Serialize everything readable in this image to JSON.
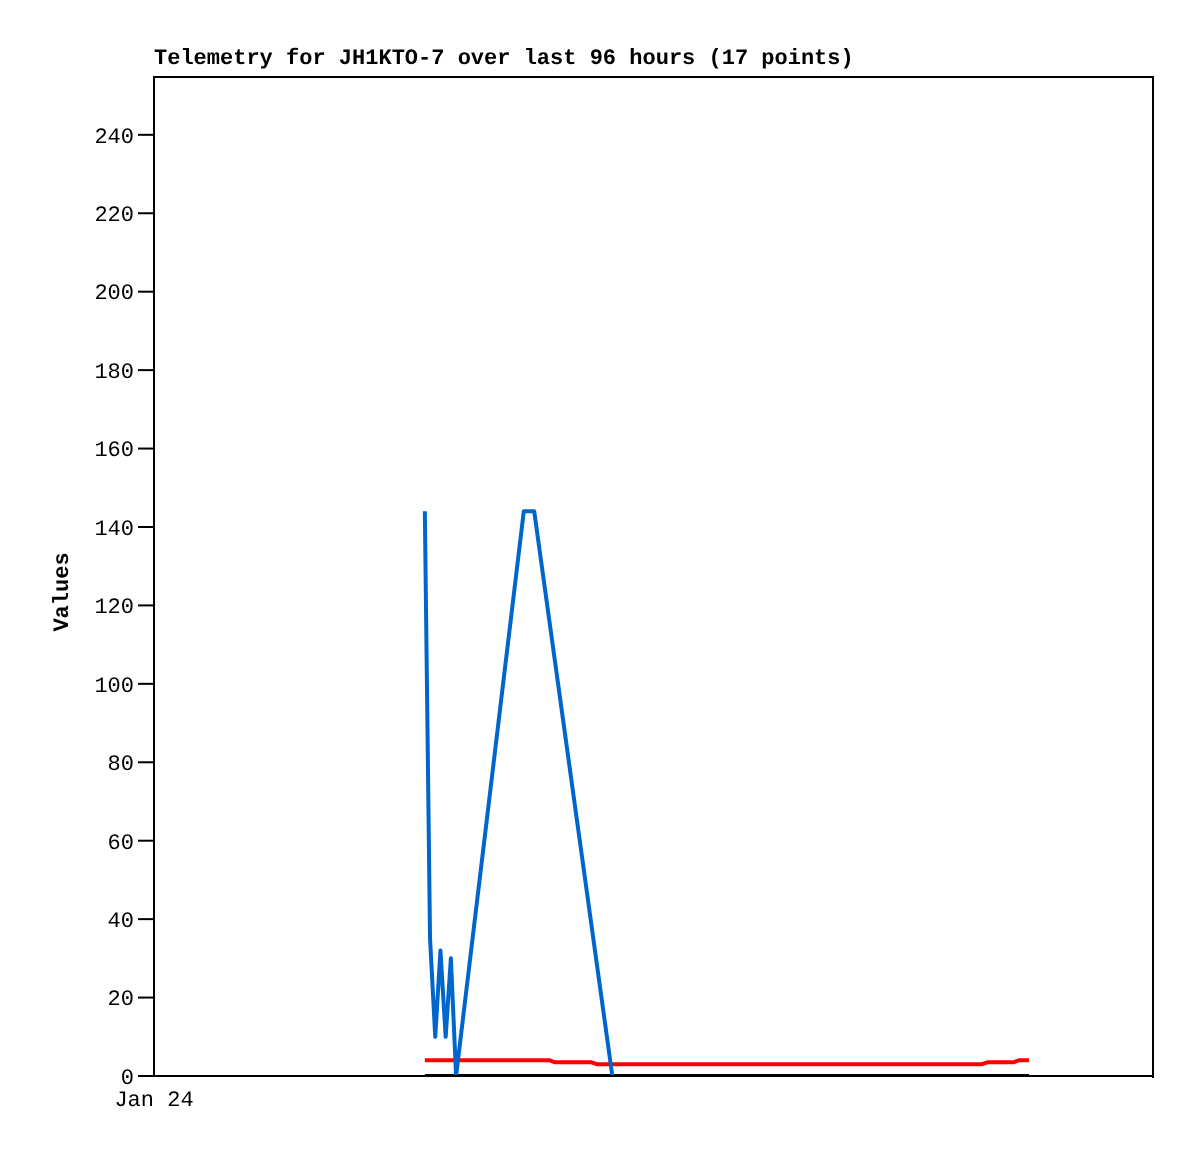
{
  "chart_data": {
    "type": "line",
    "title": "Telemetry for JH1KTO-7 over last 96 hours (17 points)",
    "ylabel": "Values",
    "annotations": [
      "Jan 24"
    ],
    "categories": [
      null,
      null,
      null,
      null,
      null,
      null,
      null,
      null,
      null,
      null,
      null,
      null,
      null,
      null,
      null,
      null,
      null,
      null,
      null,
      null,
      null,
      null,
      null,
      null,
      null,
      null,
      null,
      null,
      null,
      null,
      null,
      null,
      null,
      null,
      null,
      null,
      null,
      null,
      null,
      null,
      null,
      null,
      null,
      null,
      null,
      null,
      null,
      null,
      null,
      null,
      null,
      null,
      null,
      null,
      null,
      null,
      null,
      null,
      null,
      null,
      null,
      null,
      null,
      null,
      null,
      null,
      null,
      null,
      null,
      null,
      null,
      null,
      null,
      null,
      null,
      null,
      null,
      null,
      null,
      null,
      null,
      null,
      null,
      null,
      null,
      null,
      null,
      null,
      null,
      null,
      null,
      null,
      null,
      null,
      null,
      null,
      null,
      null,
      null,
      null,
      null,
      null,
      null,
      null,
      null,
      null,
      null,
      null,
      null,
      null,
      null,
      null,
      null,
      null,
      null,
      null,
      null,
      null,
      null,
      null,
      null,
      null,
      null,
      null,
      null,
      null,
      null,
      null,
      null,
      null,
      null,
      null,
      null,
      null,
      null,
      null,
      null,
      null,
      null,
      null,
      null,
      null,
      null,
      null,
      null,
      null,
      null,
      null,
      null,
      null,
      null,
      null,
      null,
      null,
      null,
      null,
      null,
      null,
      null,
      null,
      null,
      null,
      null,
      null,
      null,
      null,
      null,
      null,
      null,
      null,
      null,
      null,
      null,
      null,
      null,
      null,
      null,
      null,
      null,
      null,
      null,
      null,
      null,
      null,
      null,
      null,
      null,
      null,
      null,
      null,
      null,
      null,
      null
    ],
    "ylim": [
      0,
      255
    ],
    "yticks": [
      0,
      20,
      40,
      60,
      80,
      100,
      120,
      140,
      160,
      180,
      200,
      220,
      240
    ],
    "marker": "none",
    "line_style": "solid",
    "series": [
      {
        "color": "#000000",
        "values": [
          null,
          null,
          null,
          null,
          null,
          null,
          null,
          null,
          null,
          null,
          null,
          null,
          null,
          null,
          null,
          null,
          null,
          null,
          null,
          null,
          null,
          null,
          null,
          null,
          null,
          null,
          null,
          null,
          null,
          null,
          null,
          null,
          null,
          null,
          null,
          null,
          null,
          null,
          null,
          null,
          null,
          null,
          null,
          null,
          null,
          null,
          null,
          null,
          null,
          null,
          null,
          null,
          0,
          null,
          null,
          null,
          null,
          null,
          null,
          null,
          null,
          null,
          null,
          null,
          null,
          null,
          null,
          null,
          null,
          null,
          null,
          null,
          null,
          null,
          null,
          null,
          null,
          null,
          null,
          null,
          null,
          null,
          null,
          null,
          null,
          null,
          null,
          null,
          null,
          null,
          null,
          null,
          null,
          null,
          null,
          null,
          null,
          null,
          null,
          null,
          null,
          null,
          null,
          null,
          null,
          null,
          null,
          null,
          null,
          null,
          null,
          null,
          null,
          null,
          null,
          null,
          null,
          null,
          null,
          null,
          null,
          null,
          null,
          null,
          null,
          null,
          null,
          null,
          null,
          null,
          null,
          null,
          null,
          null,
          null,
          null,
          null,
          null,
          null,
          null,
          null,
          null,
          null,
          null,
          null,
          null,
          null,
          null,
          null,
          null,
          null,
          null,
          null,
          null,
          null,
          null,
          null,
          null,
          null,
          null,
          null,
          null,
          null,
          null,
          null,
          null,
          null,
          null,
          0,
          null,
          null,
          null,
          null,
          null,
          null,
          null,
          null,
          null,
          null,
          null,
          null,
          null,
          null,
          null,
          null,
          null,
          null,
          null,
          null,
          null,
          null,
          null,
          null
        ]
      },
      {
        "color": "#ff0000",
        "values": [
          null,
          null,
          null,
          null,
          null,
          null,
          null,
          null,
          null,
          null,
          null,
          null,
          null,
          null,
          null,
          null,
          null,
          null,
          null,
          null,
          null,
          null,
          null,
          null,
          null,
          null,
          null,
          null,
          null,
          null,
          null,
          null,
          null,
          null,
          null,
          null,
          null,
          null,
          null,
          null,
          null,
          null,
          null,
          null,
          null,
          null,
          null,
          null,
          null,
          null,
          null,
          null,
          4,
          null,
          null,
          null,
          null,
          null,
          null,
          null,
          null,
          null,
          null,
          null,
          null,
          null,
          null,
          null,
          null,
          null,
          null,
          null,
          null,
          null,
          null,
          null,
          4,
          3.5,
          null,
          null,
          null,
          null,
          null,
          null,
          3.5,
          3,
          null,
          null,
          null,
          null,
          null,
          null,
          null,
          null,
          null,
          null,
          null,
          null,
          null,
          null,
          null,
          null,
          null,
          null,
          null,
          null,
          null,
          null,
          null,
          null,
          null,
          null,
          null,
          null,
          null,
          null,
          null,
          null,
          null,
          null,
          null,
          null,
          null,
          null,
          null,
          null,
          null,
          null,
          null,
          null,
          null,
          null,
          null,
          null,
          null,
          null,
          null,
          null,
          null,
          null,
          null,
          null,
          null,
          null,
          null,
          null,
          null,
          null,
          null,
          null,
          null,
          null,
          null,
          null,
          null,
          null,
          null,
          null,
          null,
          3,
          3.5,
          null,
          null,
          null,
          null,
          3.5,
          4,
          null,
          4,
          null,
          null,
          null,
          null,
          null,
          null,
          null,
          null,
          null,
          null,
          null,
          null,
          null,
          null,
          null,
          null,
          null,
          null,
          null,
          null,
          null,
          null,
          null,
          null
        ]
      },
      {
        "color": "#0066cc",
        "values": [
          null,
          null,
          null,
          null,
          null,
          null,
          null,
          null,
          null,
          null,
          null,
          null,
          null,
          null,
          null,
          null,
          null,
          null,
          null,
          null,
          null,
          null,
          null,
          null,
          null,
          null,
          null,
          null,
          null,
          null,
          null,
          null,
          null,
          null,
          null,
          null,
          null,
          null,
          null,
          null,
          null,
          null,
          null,
          null,
          null,
          null,
          null,
          null,
          null,
          null,
          null,
          null,
          144,
          35,
          10,
          32,
          10,
          30,
          0,
          null,
          null,
          null,
          null,
          null,
          null,
          null,
          null,
          null,
          null,
          null,
          null,
          144,
          null,
          144,
          null,
          null,
          null,
          null,
          null,
          null,
          null,
          null,
          null,
          null,
          null,
          null,
          null,
          null,
          0,
          null,
          null,
          null,
          null,
          null,
          null,
          null,
          null,
          null,
          null,
          null,
          null,
          null,
          null,
          null,
          null,
          null,
          null,
          null,
          null,
          null,
          null,
          null,
          null,
          null,
          null,
          null,
          null,
          null,
          null,
          null,
          null,
          null,
          null,
          null,
          null,
          null,
          null,
          null,
          null,
          null,
          null,
          null,
          null,
          null,
          null,
          null,
          null,
          null,
          null,
          null,
          null,
          null,
          null,
          null,
          null,
          null,
          null,
          null,
          null,
          null,
          null,
          null,
          null,
          null,
          null,
          null,
          null,
          null,
          null,
          null,
          null,
          null,
          null,
          null,
          null,
          null,
          null,
          null,
          null,
          null,
          null,
          null,
          null,
          null,
          null,
          null,
          null,
          null,
          null,
          null,
          null,
          null,
          null,
          null,
          null,
          null,
          null,
          null,
          null,
          null,
          null,
          null,
          null
        ]
      }
    ]
  }
}
